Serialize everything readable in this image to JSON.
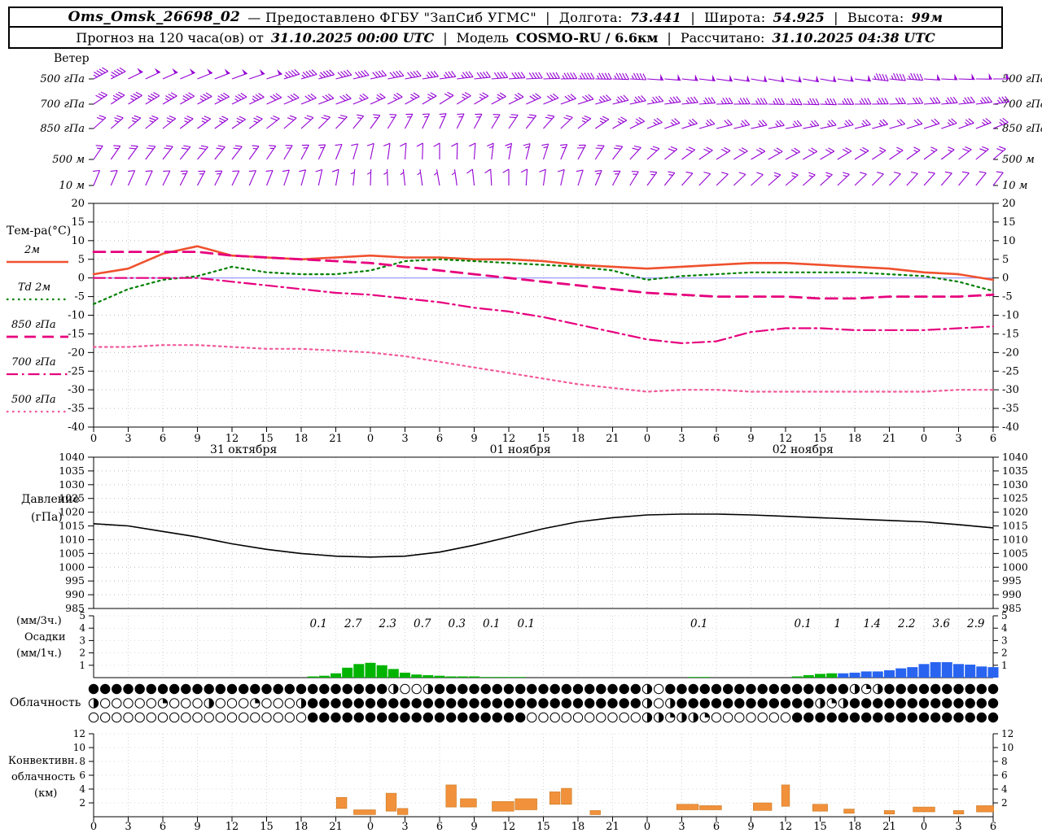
{
  "header": {
    "line1": {
      "station": "Oms_Omsk_26698_02",
      "provided": "— Предоставлено ФГБУ \"ЗапСиб УГМС\"",
      "sep": "|",
      "lon_label": "Долгота:",
      "lon_value": "73.441",
      "lat_label": "Широта:",
      "lat_value": "54.925",
      "alt_label": "Высота:",
      "alt_value": "99м"
    },
    "line2": {
      "forecast_label": "Прогноз на 120 часа(ов) от",
      "forecast_time": "31.10.2025 00:00 UTC",
      "sep": "|",
      "model_label": "Модель",
      "model_value": "COSMO-RU / 6.6км",
      "calc_label": "Рассчитано:",
      "calc_value": "31.10.2025 04:38 UTC"
    }
  },
  "panels": {
    "wind": {
      "title": "Ветер"
    },
    "temperature": {
      "title": "Тем-ра(°C)"
    },
    "pressure": {
      "title_line1": "Давление",
      "title_line2": "(гПа)"
    },
    "precip": {
      "label_3h": "(мм/3ч.)",
      "label_name": "Осадки",
      "label_1h": "(мм/1ч.)"
    },
    "cloud": {
      "title": "Облачность"
    },
    "convective": {
      "title_line1": "Конвективн.",
      "title_line2": "облачность",
      "title_line3": "(км)"
    }
  },
  "axis": {
    "hour_labels": [
      "0",
      "3",
      "6",
      "9",
      "12",
      "15",
      "18",
      "21",
      "0",
      "3",
      "6",
      "9",
      "12",
      "15",
      "18",
      "21",
      "0",
      "3",
      "6",
      "9",
      "12",
      "15",
      "18",
      "21",
      "0",
      "3",
      "6"
    ],
    "date_labels": [
      {
        "hour": 13,
        "text": "31 октября"
      },
      {
        "hour": 37,
        "text": "01 ноября"
      },
      {
        "hour": 61.5,
        "text": "02 ноября"
      }
    ],
    "temp_ticks": [
      20,
      15,
      10,
      5,
      0,
      -5,
      -10,
      -15,
      -20,
      -25,
      -30,
      -35,
      -40
    ],
    "pressure_ticks": [
      1040,
      1035,
      1030,
      1025,
      1020,
      1015,
      1010,
      1005,
      1000,
      995,
      990,
      985
    ],
    "precip_ticks": [
      5,
      4,
      3,
      2,
      1
    ],
    "convective_ticks": [
      12,
      10,
      8,
      6,
      4,
      2
    ]
  },
  "chart_data": [
    {
      "id": "wind",
      "type": "wind_barbs",
      "color": "#9400d3",
      "hours_step": 3,
      "levels": [
        {
          "name": "500 гПа",
          "dir": [
            242,
            244,
            246,
            248,
            250,
            252,
            254,
            256,
            258,
            260,
            262,
            264,
            266,
            268,
            270,
            272,
            274,
            276,
            278,
            280,
            281,
            280,
            278,
            276,
            274,
            272,
            270
          ],
          "speed": [
            45,
            48,
            50,
            52,
            50,
            48,
            45,
            42,
            40,
            38,
            36,
            38,
            40,
            42,
            44,
            46,
            48,
            50,
            50,
            52,
            52,
            50,
            48,
            46,
            48,
            50,
            50
          ]
        },
        {
          "name": "700 гПа",
          "dir": [
            236,
            238,
            240,
            242,
            244,
            246,
            248,
            250,
            246,
            242,
            238,
            240,
            244,
            248,
            252,
            256,
            260,
            264,
            268,
            270,
            272,
            272,
            270,
            268,
            266,
            264,
            262
          ],
          "speed": [
            32,
            34,
            36,
            36,
            34,
            32,
            30,
            28,
            26,
            24,
            22,
            24,
            26,
            30,
            32,
            34,
            36,
            36,
            34,
            34,
            36,
            36,
            34,
            32,
            32,
            34,
            36
          ]
        },
        {
          "name": "850 гПа",
          "dir": [
            228,
            230,
            232,
            234,
            236,
            232,
            228,
            224,
            216,
            208,
            204,
            208,
            214,
            222,
            232,
            240,
            248,
            252,
            256,
            258,
            260,
            258,
            256,
            254,
            252,
            250,
            248
          ],
          "speed": [
            22,
            24,
            26,
            26,
            24,
            22,
            20,
            18,
            16,
            14,
            14,
            16,
            18,
            20,
            24,
            26,
            26,
            24,
            22,
            24,
            26,
            26,
            24,
            22,
            22,
            24,
            24
          ]
        },
        {
          "name": "500 м",
          "dir": [
            214,
            216,
            218,
            220,
            218,
            214,
            208,
            202,
            192,
            184,
            180,
            184,
            190,
            198,
            208,
            218,
            228,
            234,
            238,
            240,
            242,
            240,
            238,
            236,
            234,
            232,
            230
          ],
          "speed": [
            16,
            18,
            20,
            20,
            18,
            16,
            14,
            12,
            10,
            10,
            10,
            12,
            14,
            16,
            18,
            20,
            22,
            20,
            18,
            18,
            20,
            20,
            18,
            16,
            16,
            18,
            18
          ]
        },
        {
          "name": "10 м",
          "dir": [
            202,
            204,
            206,
            208,
            206,
            202,
            196,
            190,
            182,
            174,
            170,
            174,
            180,
            188,
            198,
            208,
            216,
            222,
            226,
            228,
            230,
            228,
            226,
            224,
            222,
            220,
            218
          ],
          "speed": [
            10,
            12,
            12,
            14,
            12,
            10,
            10,
            8,
            6,
            6,
            6,
            8,
            10,
            10,
            12,
            14,
            14,
            12,
            12,
            12,
            14,
            14,
            12,
            10,
            10,
            12,
            12
          ]
        }
      ]
    },
    {
      "id": "temperature",
      "type": "line",
      "ylim": [
        -40,
        20
      ],
      "zero_line_color": "#9090ff",
      "x_hours": [
        0,
        3,
        6,
        9,
        12,
        15,
        18,
        21,
        24,
        27,
        30,
        33,
        36,
        39,
        42,
        45,
        48,
        51,
        54,
        57,
        60,
        63,
        66,
        69,
        72,
        75,
        78
      ],
      "series": [
        {
          "name": "2м",
          "style": "solid",
          "color": "#ef512e",
          "width": 2.6,
          "values": [
            1,
            2.5,
            6.5,
            8.5,
            6,
            5.5,
            5,
            5.5,
            6,
            5.5,
            5.5,
            5,
            5,
            4.5,
            3.5,
            3,
            2.5,
            3,
            3.5,
            4,
            4,
            3.5,
            3,
            2.5,
            1.5,
            1,
            -0.5
          ]
        },
        {
          "name": "Td 2м",
          "style": "dotted",
          "color": "#008000",
          "width": 2.2,
          "values": [
            -7,
            -3,
            -0.5,
            0.5,
            3,
            1.5,
            1,
            1,
            2,
            4.5,
            5,
            4.5,
            4,
            3.5,
            3,
            2,
            -0.5,
            0.5,
            1,
            1.5,
            1.5,
            1.5,
            1.5,
            1,
            0.5,
            -1,
            -3.5
          ]
        },
        {
          "name": "850 гПа",
          "style": "dashed",
          "color": "#e6007d",
          "width": 2.8,
          "values": [
            7,
            7,
            7,
            7,
            6,
            5.5,
            5,
            4.5,
            4,
            3,
            2,
            1,
            0,
            -1,
            -2,
            -3,
            -4,
            -4.5,
            -5,
            -5,
            -5,
            -5.5,
            -5.5,
            -5,
            -5,
            -5,
            -4.5
          ]
        },
        {
          "name": "700 гПа",
          "style": "dashdot",
          "color": "#e6007d",
          "width": 2.2,
          "values": [
            0,
            0,
            0,
            0,
            -1,
            -2,
            -3,
            -4,
            -4.5,
            -5.5,
            -6.5,
            -8,
            -9,
            -10.5,
            -12.5,
            -14.5,
            -16.5,
            -17.5,
            -17,
            -14.5,
            -13.5,
            -13.5,
            -14,
            -14,
            -14,
            -13.5,
            -13
          ]
        },
        {
          "name": "500 гПа",
          "style": "dotted",
          "color": "#f25a9b",
          "width": 2.2,
          "values": [
            -18.5,
            -18.5,
            -18,
            -18,
            -18.5,
            -19,
            -19,
            -19.5,
            -20,
            -21,
            -22.5,
            -24,
            -25.5,
            -27,
            -28.5,
            -29.5,
            -30.5,
            -30,
            -30,
            -30.5,
            -30.5,
            -30.5,
            -30.5,
            -30.5,
            -30.5,
            -30,
            -30
          ]
        }
      ]
    },
    {
      "id": "pressure",
      "type": "line",
      "ylim": [
        985,
        1040
      ],
      "x_hours": [
        0,
        3,
        6,
        9,
        12,
        15,
        18,
        21,
        24,
        27,
        30,
        33,
        36,
        39,
        42,
        45,
        48,
        51,
        54,
        57,
        60,
        63,
        66,
        69,
        72,
        75,
        78
      ],
      "series": [
        {
          "name": "Давление",
          "style": "solid",
          "color": "#000000",
          "width": 1.6,
          "values": [
            1015.8,
            1015,
            1013,
            1011,
            1008.5,
            1006.5,
            1005,
            1004,
            1003.7,
            1004,
            1005.5,
            1008,
            1011,
            1014,
            1016.5,
            1018,
            1019,
            1019.3,
            1019.3,
            1019,
            1018.5,
            1018,
            1017.5,
            1017,
            1016.5,
            1015.5,
            1014.3
          ]
        }
      ]
    },
    {
      "id": "precip",
      "type": "bar",
      "ylim": [
        0,
        5
      ],
      "colors": {
        "rain": "#00b400",
        "snow": "#2864f0"
      },
      "labels_3h": [
        [
          19.5,
          "0.1"
        ],
        [
          22.5,
          "2.7"
        ],
        [
          25.5,
          "2.3"
        ],
        [
          28.5,
          "0.7"
        ],
        [
          31.5,
          "0.3"
        ],
        [
          34.5,
          "0.1"
        ],
        [
          37.5,
          "0.1"
        ],
        [
          52.5,
          "0.1"
        ],
        [
          61.5,
          "0.1"
        ],
        [
          64.5,
          "1"
        ],
        [
          67.5,
          "1.4"
        ],
        [
          70.5,
          "2.2"
        ],
        [
          73.5,
          "3.6"
        ],
        [
          76.5,
          "2.9"
        ]
      ],
      "bars_1h": [
        [
          19,
          0.1,
          "rain"
        ],
        [
          20,
          0.15,
          "rain"
        ],
        [
          21,
          0.35,
          "rain"
        ],
        [
          22,
          0.8,
          "rain"
        ],
        [
          23,
          1.1,
          "rain"
        ],
        [
          24,
          1.2,
          "rain"
        ],
        [
          25,
          1.0,
          "rain"
        ],
        [
          26,
          0.7,
          "rain"
        ],
        [
          27,
          0.4,
          "rain"
        ],
        [
          28,
          0.25,
          "rain"
        ],
        [
          29,
          0.2,
          "rain"
        ],
        [
          30,
          0.15,
          "rain"
        ],
        [
          31,
          0.1,
          "rain"
        ],
        [
          32,
          0.1,
          "rain"
        ],
        [
          33,
          0.1,
          "rain"
        ],
        [
          34,
          0.05,
          "rain"
        ],
        [
          35,
          0.05,
          "rain"
        ],
        [
          36,
          0.05,
          "rain"
        ],
        [
          37,
          0.05,
          "rain"
        ],
        [
          52,
          0.05,
          "rain"
        ],
        [
          53,
          0.05,
          "rain"
        ],
        [
          61,
          0.1,
          "rain"
        ],
        [
          62,
          0.2,
          "rain"
        ],
        [
          63,
          0.3,
          "rain"
        ],
        [
          64,
          0.35,
          "rain"
        ],
        [
          65,
          0.35,
          "snow"
        ],
        [
          66,
          0.4,
          "snow"
        ],
        [
          67,
          0.5,
          "snow"
        ],
        [
          68,
          0.5,
          "snow"
        ],
        [
          69,
          0.6,
          "snow"
        ],
        [
          70,
          0.75,
          "snow"
        ],
        [
          71,
          0.85,
          "snow"
        ],
        [
          72,
          1.1,
          "snow"
        ],
        [
          73,
          1.25,
          "snow"
        ],
        [
          74,
          1.25,
          "snow"
        ],
        [
          75,
          1.1,
          "snow"
        ],
        [
          76,
          1.05,
          "snow"
        ],
        [
          77,
          0.9,
          "snow"
        ],
        [
          78,
          0.85,
          "snow"
        ]
      ]
    },
    {
      "id": "cloud",
      "type": "cloud_cover",
      "encoding": "one symbol per hour, 0..4 = fill quarters (0 clear, 4 overcast)",
      "rows": [
        {
          "name": "row1",
          "oktas": "4444444444444444444444444420024444444444444444442044444444444444442124444444444"
        },
        {
          "name": "row2",
          "oktas": "2000001000200010002444444444444444444444444444442024444444444442124444444444444"
        },
        {
          "name": "row3",
          "oktas": "0000000000000000000444444444444444444400000000002212210000000444444444444444444"
        }
      ]
    },
    {
      "id": "convective",
      "type": "range_bar",
      "ylim": [
        0,
        12
      ],
      "color": "#f2913c",
      "bars_format": [
        "hour_center",
        "width_hours",
        "base_km",
        "top_km"
      ],
      "bars": [
        [
          21.5,
          1,
          1.2,
          2.8
        ],
        [
          23.5,
          2,
          0.3,
          1.0
        ],
        [
          25.8,
          1,
          0.8,
          3.4
        ],
        [
          26.8,
          1,
          0.3,
          1.2
        ],
        [
          31,
          1,
          1.4,
          4.6
        ],
        [
          32.5,
          1.5,
          1.4,
          2.6
        ],
        [
          35.5,
          2,
          0.8,
          2.2
        ],
        [
          37.5,
          2,
          1.0,
          2.6
        ],
        [
          40,
          1,
          1.8,
          3.6
        ],
        [
          41,
          1,
          1.8,
          4.1
        ],
        [
          43.5,
          1,
          0.3,
          0.9
        ],
        [
          51.5,
          2,
          1.0,
          1.8
        ],
        [
          53.5,
          2,
          1.0,
          1.6
        ],
        [
          58,
          1.7,
          0.9,
          2.0
        ],
        [
          60,
          0.8,
          1.5,
          4.6
        ],
        [
          63,
          1.4,
          0.8,
          1.8
        ],
        [
          65.5,
          1,
          0.5,
          1.1
        ],
        [
          69,
          1,
          0.4,
          0.9
        ],
        [
          72,
          2,
          0.7,
          1.4
        ],
        [
          75,
          1,
          0.4,
          0.9
        ],
        [
          77.3,
          1.6,
          0.7,
          1.6
        ]
      ]
    }
  ]
}
